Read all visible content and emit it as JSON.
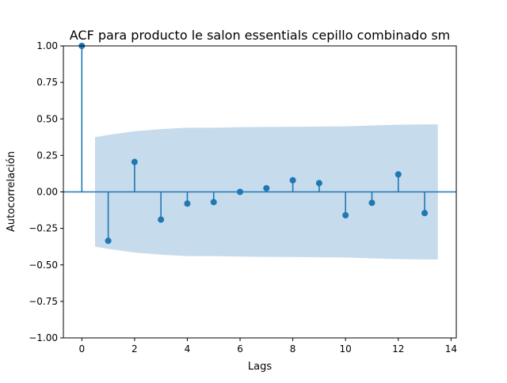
{
  "chart_data": {
    "type": "stem",
    "title": "ACF para producto le salon essentials cepillo combinado sm",
    "xlabel": "Lags",
    "ylabel": "Autocorrelación",
    "xlim": [
      -0.7,
      14.2
    ],
    "ylim": [
      -1.0,
      1.0
    ],
    "xticks": [
      0,
      2,
      4,
      6,
      8,
      10,
      12,
      14
    ],
    "xtick_labels": [
      "0",
      "2",
      "4",
      "6",
      "8",
      "10",
      "12",
      "14"
    ],
    "yticks": [
      -1.0,
      -0.75,
      -0.5,
      -0.25,
      0.0,
      0.25,
      0.5,
      0.75,
      1.0
    ],
    "ytick_labels": [
      "−1.00",
      "−0.75",
      "−0.50",
      "−0.25",
      "0.00",
      "0.25",
      "0.50",
      "0.75",
      "1.00"
    ],
    "grid": false,
    "series": [
      {
        "lags": [
          0,
          1,
          2,
          3,
          4,
          5,
          6,
          7,
          8,
          9,
          10,
          11,
          12,
          13
        ],
        "values": [
          1.0,
          -0.335,
          0.205,
          -0.19,
          -0.08,
          -0.07,
          0.0,
          0.025,
          0.08,
          0.06,
          -0.16,
          -0.075,
          0.12,
          -0.145
        ]
      }
    ],
    "confidence_band": {
      "x": [
        0.5,
        1,
        2,
        3,
        4,
        5,
        6,
        7,
        8,
        9,
        10,
        11,
        12,
        13,
        13.5
      ],
      "upper": [
        0.375,
        0.39,
        0.415,
        0.43,
        0.44,
        0.44,
        0.443,
        0.445,
        0.446,
        0.448,
        0.449,
        0.455,
        0.46,
        0.463,
        0.463
      ]
    },
    "colors": {
      "stem": "#1f77b4",
      "band": "#c6dbec",
      "axis": "#000000"
    }
  }
}
